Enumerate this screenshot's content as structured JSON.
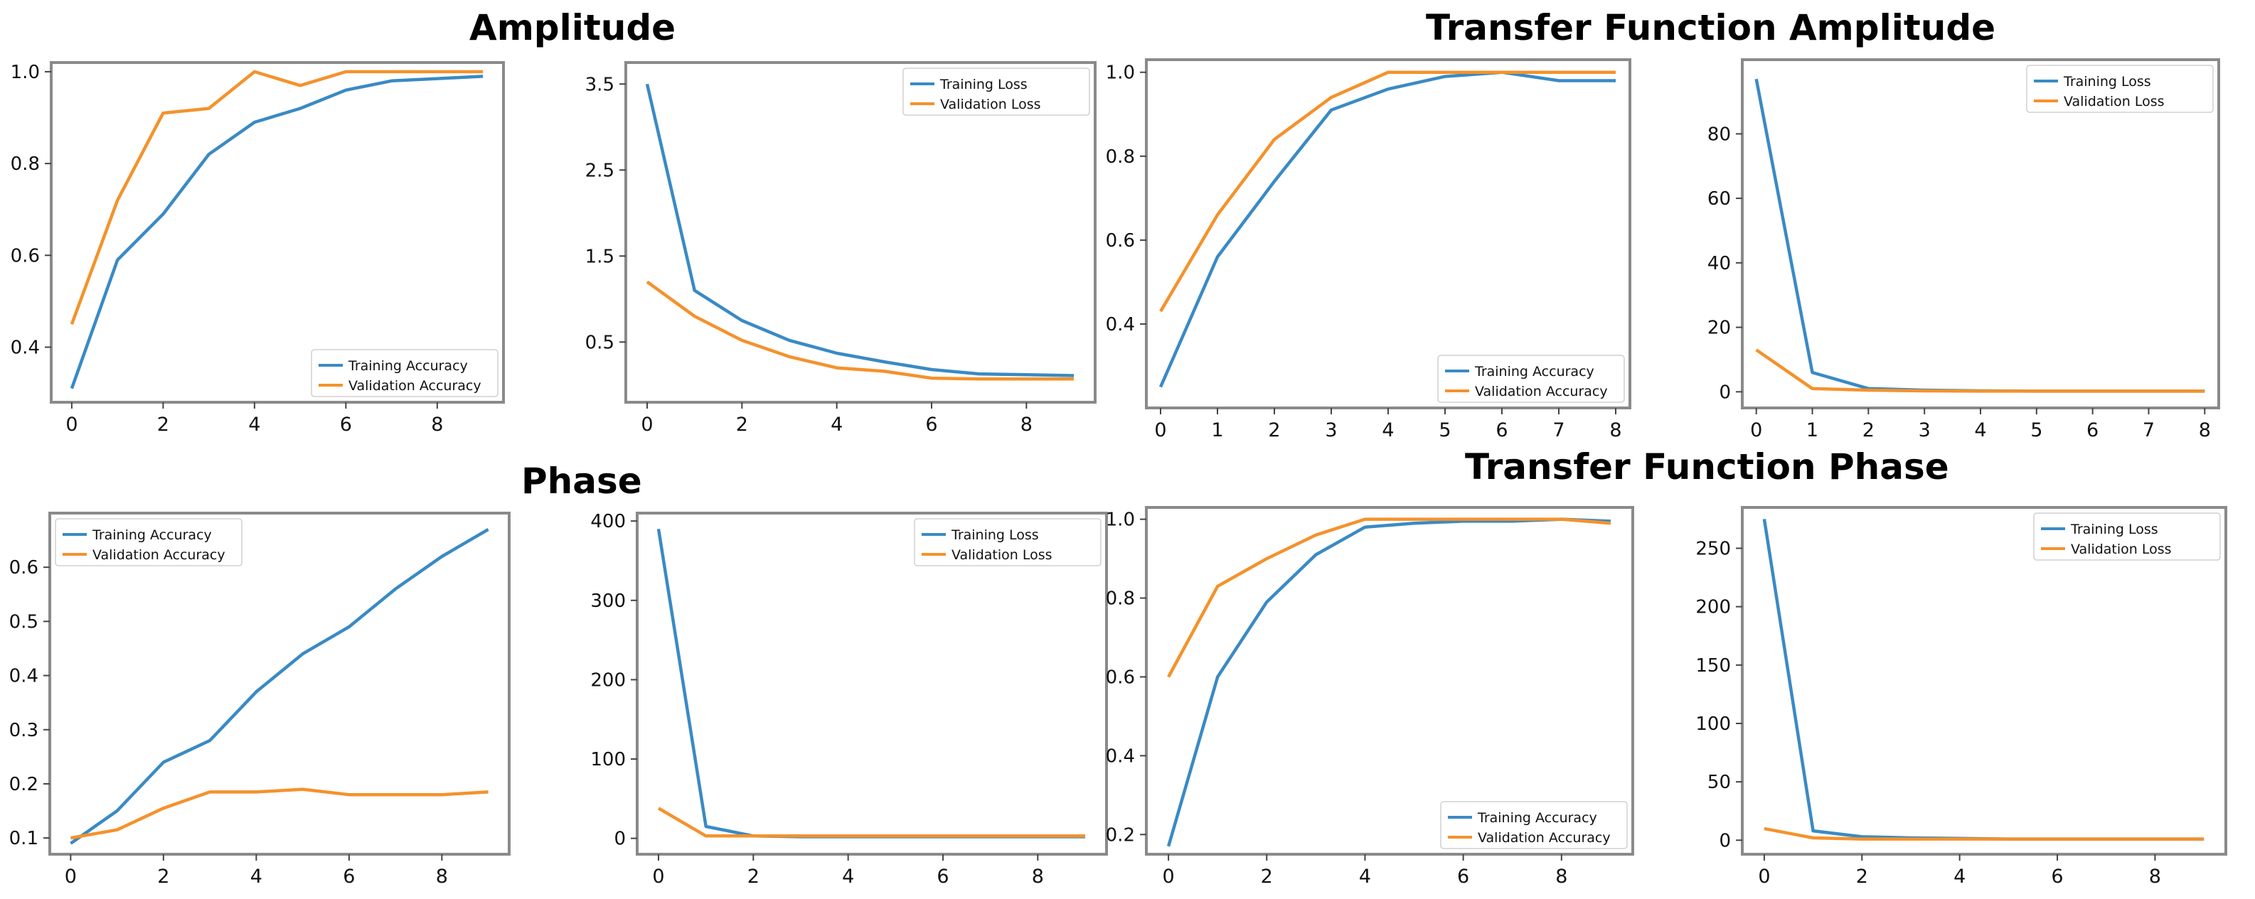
{
  "titles": {
    "amplitude": "Amplitude",
    "transfer_amplitude": "Transfer Function Amplitude",
    "phase": "Phase",
    "transfer_phase": "Transfer Function Phase"
  },
  "colors": {
    "training": "#3a8ac4",
    "validation": "#f4922c",
    "frame": "#8a8a8a"
  },
  "chart_data": [
    {
      "id": "amp-acc",
      "type": "line",
      "title": "",
      "x": [
        0,
        1,
        2,
        3,
        4,
        5,
        6,
        7,
        8,
        9
      ],
      "series": [
        {
          "name": "Training Accuracy",
          "values": [
            0.31,
            0.59,
            0.69,
            0.82,
            0.89,
            0.92,
            0.96,
            0.98,
            0.985,
            0.99
          ]
        },
        {
          "name": "Validation Accuracy",
          "values": [
            0.45,
            0.72,
            0.91,
            0.92,
            1.0,
            0.97,
            1.0,
            1.0,
            1.0,
            1.0
          ]
        }
      ],
      "xlim": [
        -0.45,
        9.45
      ],
      "ylim": [
        0.28,
        1.02
      ],
      "xticks": [
        0,
        2,
        4,
        6,
        8
      ],
      "yticks": [
        0.4,
        0.6,
        0.8,
        1.0
      ],
      "ytick_labels": [
        "0.4",
        "0.6",
        "0.8",
        "1.0"
      ],
      "legend": "lower-right"
    },
    {
      "id": "amp-loss",
      "type": "line",
      "title": "",
      "x": [
        0,
        1,
        2,
        3,
        4,
        5,
        6,
        7,
        8,
        9
      ],
      "series": [
        {
          "name": "Training Loss",
          "values": [
            3.5,
            1.1,
            0.75,
            0.52,
            0.37,
            0.27,
            0.18,
            0.13,
            0.12,
            0.11
          ]
        },
        {
          "name": "Validation Loss",
          "values": [
            1.2,
            0.8,
            0.52,
            0.33,
            0.2,
            0.16,
            0.08,
            0.07,
            0.07,
            0.07
          ]
        }
      ],
      "xlim": [
        -0.45,
        9.45
      ],
      "ylim": [
        -0.2,
        3.75
      ],
      "xticks": [
        0,
        2,
        4,
        6,
        8
      ],
      "yticks": [
        0.5,
        1.5,
        2.5,
        3.5
      ],
      "ytick_labels": [
        "0.5",
        "1.5",
        "2.5",
        "3.5"
      ],
      "legend": "top-right"
    },
    {
      "id": "tf-amp-acc",
      "type": "line",
      "title": "",
      "x": [
        0,
        1,
        2,
        3,
        4,
        5,
        6,
        7,
        8
      ],
      "series": [
        {
          "name": "Training Accuracy",
          "values": [
            0.25,
            0.56,
            0.74,
            0.91,
            0.96,
            0.99,
            1.0,
            0.98,
            0.98
          ]
        },
        {
          "name": "Validation Accuracy",
          "values": [
            0.43,
            0.66,
            0.84,
            0.94,
            1.0,
            1.0,
            1.0,
            1.0,
            1.0
          ]
        }
      ],
      "xlim": [
        -0.25,
        8.25
      ],
      "ylim": [
        0.2,
        1.03
      ],
      "xticks": [
        0,
        1,
        2,
        3,
        4,
        5,
        6,
        7,
        8
      ],
      "yticks": [
        0.4,
        0.6,
        0.8,
        1.0
      ],
      "ytick_labels": [
        "0.4",
        "0.6",
        "0.8",
        "1.0"
      ],
      "legend": "lower-right"
    },
    {
      "id": "tf-amp-loss",
      "type": "line",
      "title": "",
      "x": [
        0,
        1,
        2,
        3,
        4,
        5,
        6,
        7,
        8
      ],
      "series": [
        {
          "name": "Training Loss",
          "values": [
            97,
            6,
            1,
            0.5,
            0.3,
            0.2,
            0.2,
            0.2,
            0.2
          ]
        },
        {
          "name": "Validation Loss",
          "values": [
            13,
            1,
            0.5,
            0.3,
            0.2,
            0.2,
            0.2,
            0.2,
            0.2
          ]
        }
      ],
      "xlim": [
        -0.25,
        8.25
      ],
      "ylim": [
        -5,
        103
      ],
      "xticks": [
        0,
        1,
        2,
        3,
        4,
        5,
        6,
        7,
        8
      ],
      "yticks": [
        0,
        20,
        40,
        60,
        80
      ],
      "ytick_labels": [
        "0",
        "20",
        "40",
        "60",
        "80"
      ],
      "legend": "top-right"
    },
    {
      "id": "phase-acc",
      "type": "line",
      "title": "",
      "x": [
        0,
        1,
        2,
        3,
        4,
        5,
        6,
        7,
        8,
        9
      ],
      "series": [
        {
          "name": "Training Accuracy",
          "values": [
            0.09,
            0.15,
            0.24,
            0.28,
            0.37,
            0.44,
            0.49,
            0.56,
            0.62,
            0.67
          ]
        },
        {
          "name": "Validation Accuracy",
          "values": [
            0.1,
            0.115,
            0.155,
            0.185,
            0.185,
            0.19,
            0.18,
            0.18,
            0.18,
            0.185
          ]
        }
      ],
      "xlim": [
        -0.45,
        9.45
      ],
      "ylim": [
        0.07,
        0.7
      ],
      "xticks": [
        0,
        2,
        4,
        6,
        8
      ],
      "yticks": [
        0.1,
        0.2,
        0.3,
        0.4,
        0.5,
        0.6
      ],
      "ytick_labels": [
        "0.1",
        "0.2",
        "0.3",
        "0.4",
        "0.5",
        "0.6"
      ],
      "legend": "top-left"
    },
    {
      "id": "phase-loss",
      "type": "line",
      "title": "",
      "x": [
        0,
        1,
        2,
        3,
        4,
        5,
        6,
        7,
        8,
        9
      ],
      "series": [
        {
          "name": "Training Loss",
          "values": [
            390,
            15,
            3,
            2,
            2,
            2,
            2,
            2,
            2,
            2
          ]
        },
        {
          "name": "Validation Loss",
          "values": [
            38,
            3,
            3,
            3,
            3,
            3,
            3,
            3,
            3,
            3
          ]
        }
      ],
      "xlim": [
        -0.45,
        9.45
      ],
      "ylim": [
        -20,
        410
      ],
      "xticks": [
        0,
        2,
        4,
        6,
        8
      ],
      "yticks": [
        0,
        100,
        200,
        300,
        400
      ],
      "ytick_labels": [
        "0",
        "100",
        "200",
        "300",
        "400"
      ],
      "legend": "top-right"
    },
    {
      "id": "tf-phase-acc",
      "type": "line",
      "title": "",
      "x": [
        0,
        1,
        2,
        3,
        4,
        5,
        6,
        7,
        8,
        9
      ],
      "series": [
        {
          "name": "Training Accuracy",
          "values": [
            0.17,
            0.6,
            0.79,
            0.91,
            0.98,
            0.99,
            0.995,
            0.995,
            1.0,
            0.995
          ]
        },
        {
          "name": "Validation Accuracy",
          "values": [
            0.6,
            0.83,
            0.9,
            0.96,
            1.0,
            1.0,
            1.0,
            1.0,
            1.0,
            0.99
          ]
        }
      ],
      "xlim": [
        -0.45,
        9.45
      ],
      "ylim": [
        0.15,
        1.03
      ],
      "xticks": [
        0,
        2,
        4,
        6,
        8
      ],
      "yticks": [
        0.2,
        0.4,
        0.6,
        0.8,
        1.0
      ],
      "ytick_labels": [
        "0.2",
        "0.4",
        "0.6",
        "0.8",
        "1.0"
      ],
      "legend": "lower-right"
    },
    {
      "id": "tf-phase-loss",
      "type": "line",
      "title": "",
      "x": [
        0,
        1,
        2,
        3,
        4,
        5,
        6,
        7,
        8,
        9
      ],
      "series": [
        {
          "name": "Training Loss",
          "values": [
            275,
            8,
            3,
            2,
            1.5,
            1,
            1,
            1,
            1,
            1
          ]
        },
        {
          "name": "Validation Loss",
          "values": [
            10,
            2,
            1,
            1,
            1,
            1,
            1,
            1,
            1,
            1
          ]
        }
      ],
      "xlim": [
        -0.45,
        9.45
      ],
      "ylim": [
        -12,
        285
      ],
      "xticks": [
        0,
        2,
        4,
        6,
        8
      ],
      "yticks": [
        0,
        50,
        100,
        150,
        200,
        250
      ],
      "ytick_labels": [
        "0",
        "50",
        "100",
        "150",
        "200",
        "250"
      ],
      "legend": "top-right"
    }
  ]
}
